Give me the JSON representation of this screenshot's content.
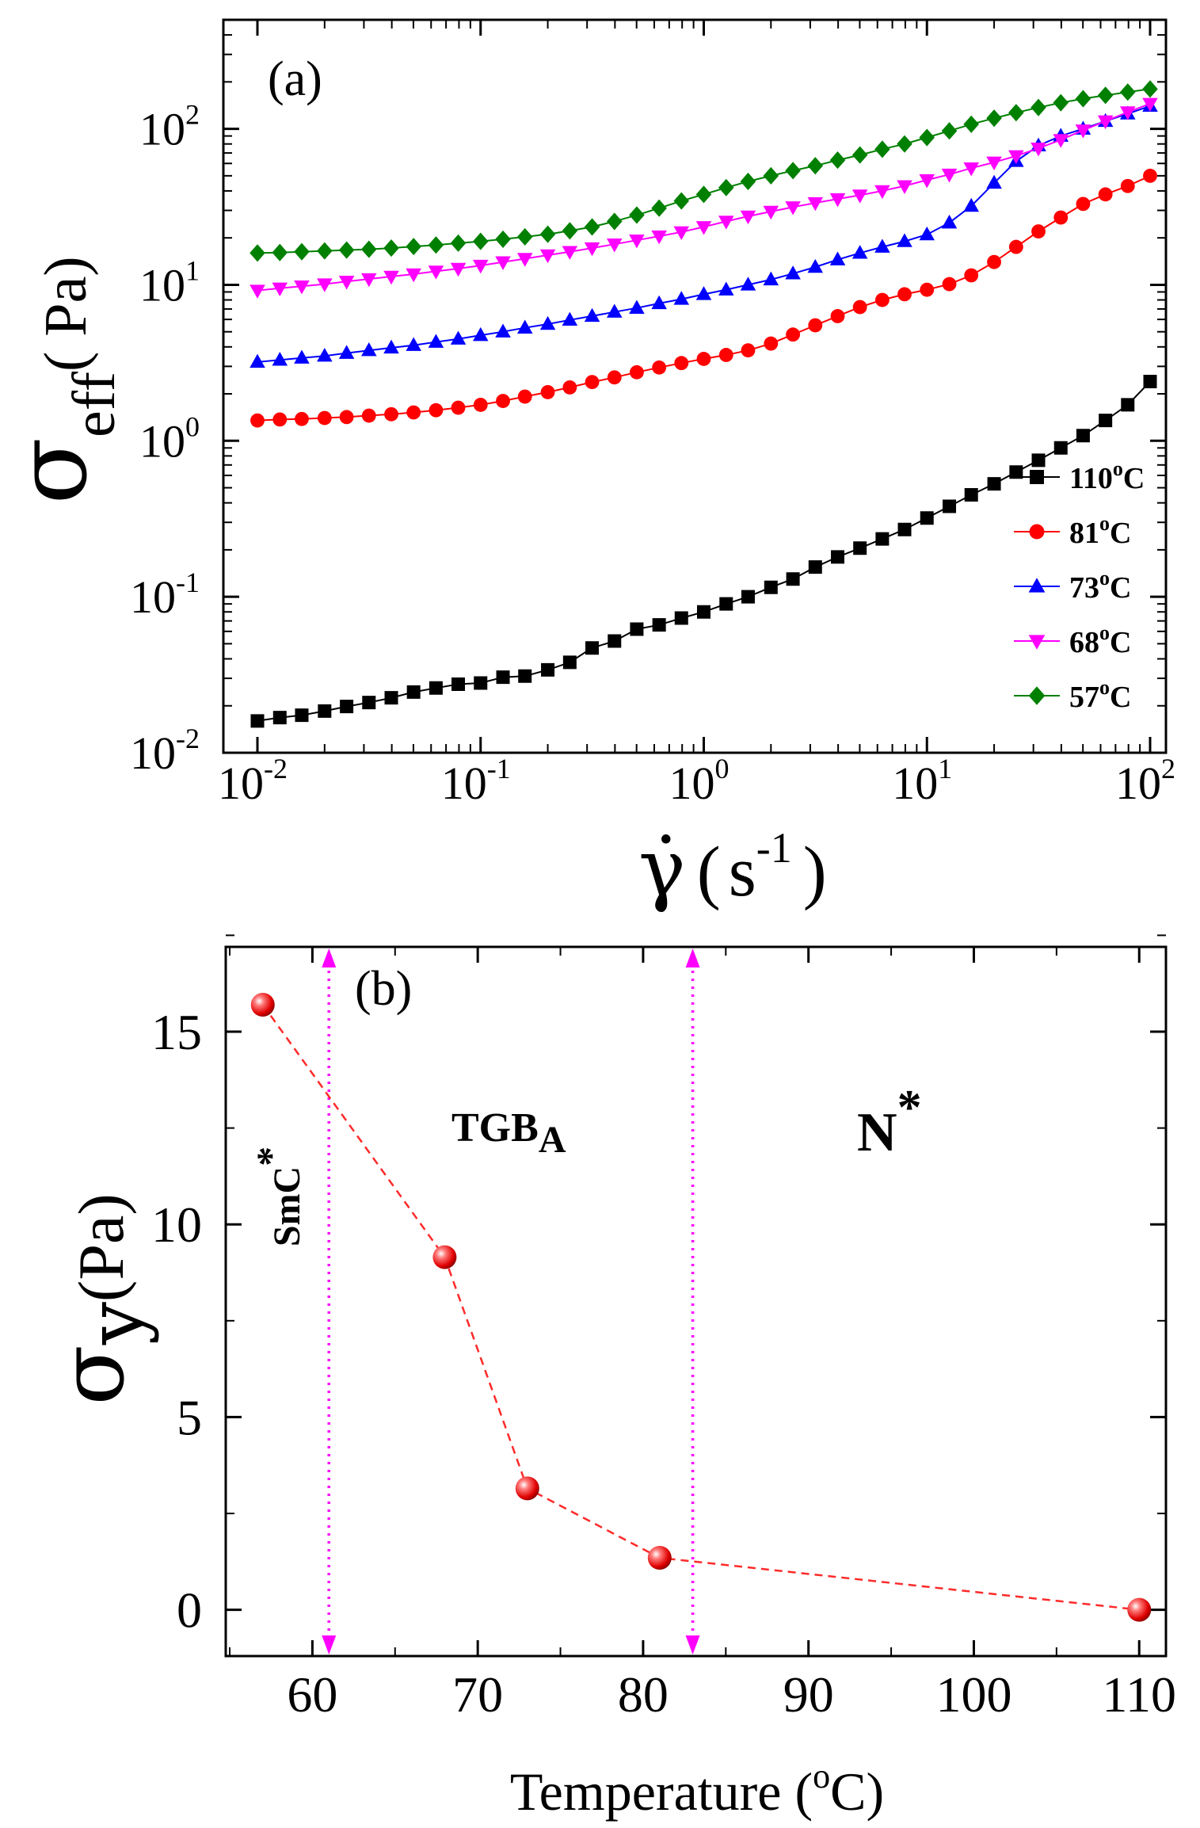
{
  "chart_data": [
    {
      "type": "line",
      "panel_label": "(a)",
      "x_scale": "log",
      "y_scale": "log",
      "xlim": [
        0.01,
        100
      ],
      "ylim": [
        0.01,
        500
      ],
      "xlabel": {
        "main": "γ̇",
        "open": "(",
        "unit": "s",
        "exp": "-1",
        "close": ")"
      },
      "ylabel": {
        "main": "σ",
        "sub": "eff",
        "unit": "( Pa)"
      },
      "x_ticks": [
        {
          "v": 0.01,
          "base": "10",
          "exp": "-2"
        },
        {
          "v": 0.1,
          "base": "10",
          "exp": "-1"
        },
        {
          "v": 1,
          "base": "10",
          "exp": "0"
        },
        {
          "v": 10,
          "base": "10",
          "exp": "1"
        },
        {
          "v": 100,
          "base": "10",
          "exp": "2"
        }
      ],
      "y_ticks": [
        {
          "v": 0.01,
          "base": "10",
          "exp": "-2"
        },
        {
          "v": 0.1,
          "base": "10",
          "exp": "-1"
        },
        {
          "v": 1,
          "base": "10",
          "exp": "0"
        },
        {
          "v": 10,
          "base": "10",
          "exp": "1"
        },
        {
          "v": 100,
          "base": "10",
          "exp": "2"
        }
      ],
      "legend": "right",
      "series": [
        {
          "name": "110",
          "sup": "o",
          "unit": "C",
          "color": "#000000",
          "marker": "square",
          "x": [
            0.01,
            0.0126,
            0.0158,
            0.02,
            0.0251,
            0.0316,
            0.0398,
            0.0501,
            0.0631,
            0.0794,
            0.1,
            0.126,
            0.158,
            0.2,
            0.251,
            0.316,
            0.398,
            0.501,
            0.631,
            0.794,
            1,
            1.26,
            1.58,
            2,
            2.51,
            3.16,
            3.98,
            5.01,
            6.31,
            7.94,
            10,
            12.6,
            15.8,
            20,
            25.1,
            31.6,
            39.8,
            50.1,
            63.1,
            79.4,
            100
          ],
          "values": [
            0.016,
            0.0168,
            0.0174,
            0.0185,
            0.0198,
            0.021,
            0.0225,
            0.0245,
            0.026,
            0.0275,
            0.028,
            0.0305,
            0.031,
            0.034,
            0.038,
            0.047,
            0.052,
            0.062,
            0.066,
            0.073,
            0.08,
            0.09,
            0.1,
            0.115,
            0.13,
            0.155,
            0.18,
            0.205,
            0.235,
            0.27,
            0.32,
            0.38,
            0.45,
            0.53,
            0.63,
            0.75,
            0.9,
            1.08,
            1.35,
            1.7,
            2.4
          ]
        },
        {
          "name": "81",
          "sup": "o",
          "unit": "C",
          "color": "#ff0000",
          "marker": "circle",
          "x": [
            0.01,
            0.0126,
            0.0158,
            0.02,
            0.0251,
            0.0316,
            0.0398,
            0.0501,
            0.0631,
            0.0794,
            0.1,
            0.126,
            0.158,
            0.2,
            0.251,
            0.316,
            0.398,
            0.501,
            0.631,
            0.794,
            1,
            1.26,
            1.58,
            2,
            2.51,
            3.16,
            3.98,
            5.01,
            6.31,
            7.94,
            10,
            12.6,
            15.8,
            20,
            25.1,
            31.6,
            39.8,
            50.1,
            63.1,
            79.4,
            100
          ],
          "values": [
            1.35,
            1.37,
            1.38,
            1.4,
            1.42,
            1.45,
            1.48,
            1.52,
            1.57,
            1.63,
            1.7,
            1.8,
            1.92,
            2.05,
            2.2,
            2.38,
            2.55,
            2.75,
            2.95,
            3.15,
            3.35,
            3.55,
            3.8,
            4.2,
            4.8,
            5.5,
            6.3,
            7.2,
            8.0,
            8.7,
            9.3,
            10.1,
            11.5,
            14.0,
            17.5,
            22.0,
            27.0,
            33.0,
            38.0,
            43.0,
            50.0
          ]
        },
        {
          "name": "73",
          "sup": "o",
          "unit": "C",
          "color": "#0000ff",
          "marker": "triangle-up",
          "x": [
            0.01,
            0.0126,
            0.0158,
            0.02,
            0.0251,
            0.0316,
            0.0398,
            0.0501,
            0.0631,
            0.0794,
            0.1,
            0.126,
            0.158,
            0.2,
            0.251,
            0.316,
            0.398,
            0.501,
            0.631,
            0.794,
            1,
            1.26,
            1.58,
            2,
            2.51,
            3.16,
            3.98,
            5.01,
            6.31,
            7.94,
            10,
            12.6,
            15.8,
            20,
            25.1,
            31.6,
            39.8,
            50.1,
            63.1,
            79.4,
            100
          ],
          "values": [
            3.2,
            3.3,
            3.4,
            3.5,
            3.65,
            3.8,
            3.95,
            4.1,
            4.3,
            4.5,
            4.75,
            5.0,
            5.3,
            5.6,
            5.95,
            6.3,
            6.7,
            7.1,
            7.6,
            8.1,
            8.7,
            9.3,
            10.0,
            10.8,
            11.8,
            13.0,
            14.5,
            16.0,
            17.5,
            19.0,
            21.0,
            25.0,
            32.0,
            45.0,
            62.0,
            78.0,
            90.0,
            100.0,
            112.0,
            125.0,
            140.0
          ]
        },
        {
          "name": "68",
          "sup": "o",
          "unit": "C",
          "color": "#ff00ff",
          "marker": "triangle-down",
          "x": [
            0.01,
            0.0126,
            0.0158,
            0.02,
            0.0251,
            0.0316,
            0.0398,
            0.0501,
            0.0631,
            0.0794,
            0.1,
            0.126,
            0.158,
            0.2,
            0.251,
            0.316,
            0.398,
            0.501,
            0.631,
            0.794,
            1,
            1.26,
            1.58,
            2,
            2.51,
            3.16,
            3.98,
            5.01,
            6.31,
            7.94,
            10,
            12.6,
            15.8,
            20,
            25.1,
            31.6,
            39.8,
            50.1,
            63.1,
            79.4,
            100
          ],
          "values": [
            9.2,
            9.5,
            9.8,
            10.1,
            10.5,
            10.9,
            11.3,
            11.7,
            12.2,
            12.7,
            13.3,
            14.0,
            14.7,
            15.5,
            16.3,
            17.2,
            18.2,
            19.3,
            20.5,
            21.8,
            23.5,
            25.5,
            27.5,
            29.5,
            31.5,
            33.5,
            35.5,
            37.5,
            40.0,
            43.0,
            47.0,
            51.0,
            56.0,
            61.0,
            67.0,
            75.0,
            85.0,
            98.0,
            112.0,
            128.0,
            145.0
          ]
        },
        {
          "name": "57",
          "sup": "o",
          "unit": "C",
          "color": "#008000",
          "marker": "diamond",
          "x": [
            0.01,
            0.0126,
            0.0158,
            0.02,
            0.0251,
            0.0316,
            0.0398,
            0.0501,
            0.0631,
            0.0794,
            0.1,
            0.126,
            0.158,
            0.2,
            0.251,
            0.316,
            0.398,
            0.501,
            0.631,
            0.794,
            1,
            1.26,
            1.58,
            2,
            2.51,
            3.16,
            3.98,
            5.01,
            6.31,
            7.94,
            10,
            12.6,
            15.8,
            20,
            25.1,
            31.6,
            39.8,
            50.1,
            63.1,
            79.4,
            100
          ],
          "values": [
            16.0,
            16.1,
            16.3,
            16.5,
            16.7,
            16.9,
            17.2,
            17.6,
            18.0,
            18.5,
            19.0,
            19.6,
            20.3,
            21.1,
            22.2,
            23.5,
            25.5,
            28.0,
            31.0,
            34.5,
            38.0,
            42.0,
            46.0,
            50.0,
            54.0,
            58.0,
            63.0,
            68.0,
            74.0,
            80.0,
            88.0,
            97.0,
            107.0,
            117.0,
            127.0,
            137.0,
            147.0,
            156.0,
            164.0,
            172.0,
            180.0
          ]
        }
      ]
    },
    {
      "type": "line",
      "panel_label": "(b)",
      "xlim": [
        55,
        112
      ],
      "ylim": [
        -1.2,
        17.2
      ],
      "xlabel": {
        "text": "Temperature (",
        "sup": "o",
        "tail": "C)"
      },
      "ylabel": {
        "main": "σ",
        "sub": "y",
        "unit": "(Pa)"
      },
      "x_ticks": [
        60,
        70,
        80,
        90,
        100,
        110
      ],
      "y_ticks": [
        0,
        5,
        10,
        15
      ],
      "series": [
        {
          "name": "σy",
          "color": "#ff2a2a",
          "marker": "sphere",
          "line": "dashed",
          "x": [
            57,
            68,
            73,
            81,
            110
          ],
          "values": [
            15.7,
            9.15,
            3.15,
            1.35,
            0.0
          ]
        }
      ],
      "phase_boundaries": [
        {
          "x": 61,
          "color": "#ff00ff",
          "style": "dotted",
          "arrows": "both"
        },
        {
          "x": 83,
          "color": "#ff00ff",
          "style": "dotted",
          "arrows": "both"
        }
      ],
      "phase_labels": [
        {
          "text": "SmC",
          "sup": "*",
          "rotated": true
        },
        {
          "text": "TGB",
          "sub": "A"
        },
        {
          "text": "N",
          "sup": "*"
        }
      ]
    }
  ]
}
